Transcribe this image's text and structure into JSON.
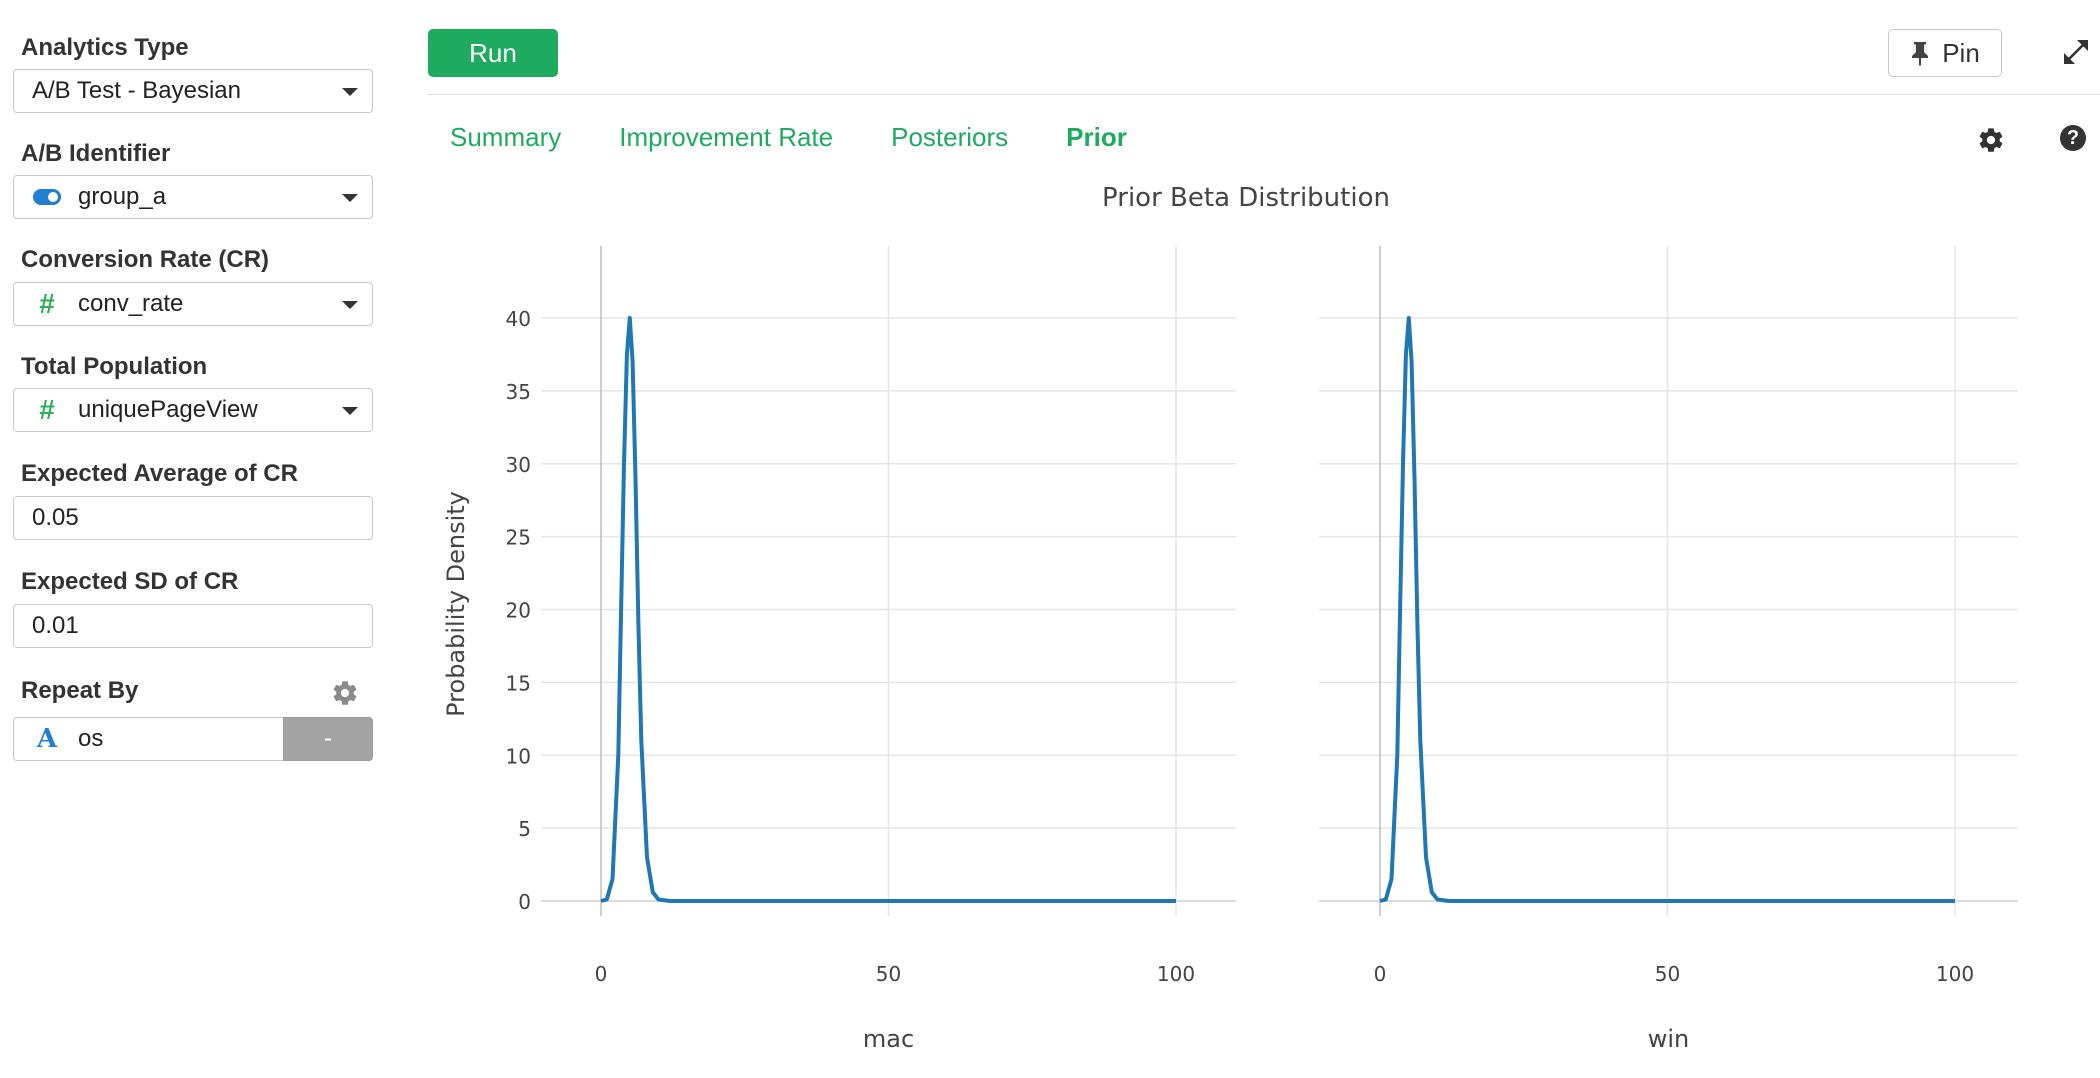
{
  "sidebar": {
    "analytics_type": {
      "label": "Analytics Type",
      "value": "A/B Test - Bayesian"
    },
    "ab_identifier": {
      "label": "A/B Identifier",
      "value": "group_a",
      "icon": "toggle-icon"
    },
    "conversion_rate": {
      "label": "Conversion Rate (CR)",
      "value": "conv_rate",
      "icon": "hash-icon"
    },
    "total_population": {
      "label": "Total Population",
      "value": "uniquePageView",
      "icon": "hash-icon"
    },
    "expected_average": {
      "label": "Expected Average of CR",
      "value": "0.05"
    },
    "expected_sd": {
      "label": "Expected SD of CR",
      "value": "0.01"
    },
    "repeat_by": {
      "label": "Repeat By",
      "value": "os",
      "icon": "text-type-icon",
      "remove_label": "-"
    }
  },
  "toolbar": {
    "run_label": "Run",
    "pin_label": "Pin"
  },
  "tabs": [
    {
      "label": "Summary",
      "active": false
    },
    {
      "label": "Improvement Rate",
      "active": false
    },
    {
      "label": "Posteriors",
      "active": false
    },
    {
      "label": "Prior",
      "active": true
    }
  ],
  "colors": {
    "accent": "#1eaa5f",
    "line": "#1f77b4",
    "grid": "#e6e6e6"
  },
  "chart_data": {
    "type": "line",
    "title": "Prior Beta Distribution",
    "ylabel": "Probability Density",
    "xlim": [
      0,
      100
    ],
    "ylim": [
      0,
      40
    ],
    "x_ticks": [
      "0",
      "50",
      "100"
    ],
    "y_ticks": [
      "0",
      "5",
      "10",
      "15",
      "20",
      "25",
      "30",
      "35",
      "40"
    ],
    "grid": true,
    "facets": [
      {
        "name": "mac",
        "x": [
          0,
          1,
          2,
          3,
          3.5,
          4,
          4.5,
          5,
          5.5,
          6,
          6.5,
          7,
          8,
          9,
          10,
          12,
          20,
          50,
          100
        ],
        "y": [
          0,
          0.1,
          1.5,
          10,
          20,
          30,
          37.5,
          40,
          37,
          29,
          19,
          11,
          3,
          0.6,
          0.1,
          0,
          0,
          0,
          0
        ]
      },
      {
        "name": "win",
        "x": [
          0,
          1,
          2,
          3,
          3.5,
          4,
          4.5,
          5,
          5.5,
          6,
          6.5,
          7,
          8,
          9,
          10,
          12,
          20,
          50,
          100
        ],
        "y": [
          0,
          0.1,
          1.5,
          10,
          20,
          30,
          37.5,
          40,
          37,
          29,
          19,
          11,
          3,
          0.6,
          0.1,
          0,
          0,
          0,
          0
        ]
      }
    ]
  }
}
